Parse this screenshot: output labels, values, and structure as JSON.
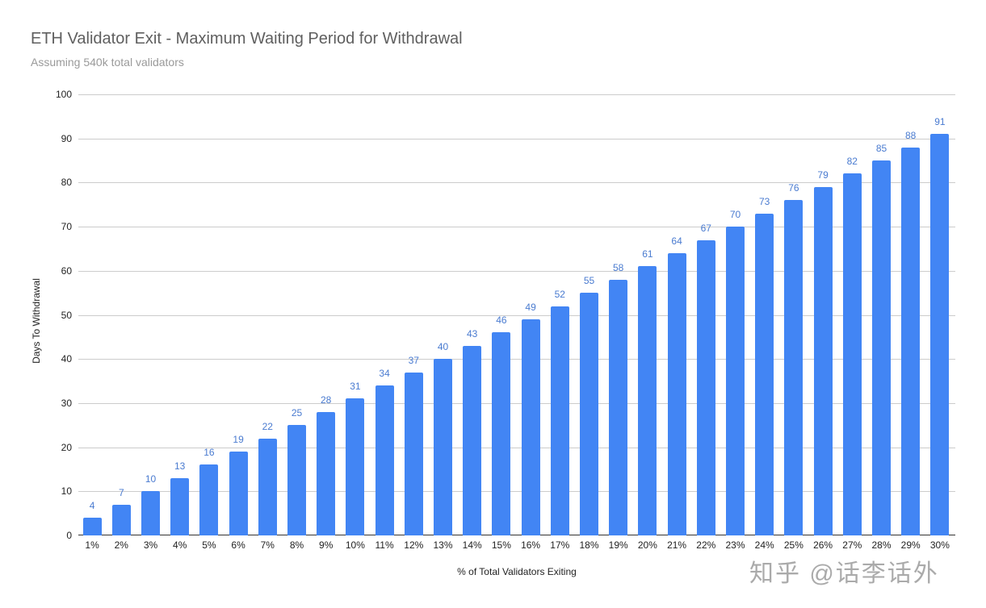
{
  "chart_data": {
    "type": "bar",
    "title": "ETH Validator Exit - Maximum Waiting Period for Withdrawal",
    "subtitle": "Assuming 540k total validators",
    "xlabel": "% of Total Validators Exiting",
    "ylabel": "Days To Withdrawal",
    "ylim": [
      0,
      100
    ],
    "yticks": [
      "0",
      "10",
      "20",
      "30",
      "40",
      "50",
      "60",
      "70",
      "80",
      "90",
      "100"
    ],
    "grid": true,
    "legend": "none",
    "bar_color": "#4285f4",
    "label_color": "#4a7bd0",
    "categories": [
      "1%",
      "2%",
      "3%",
      "4%",
      "5%",
      "6%",
      "7%",
      "8%",
      "9%",
      "10%",
      "11%",
      "12%",
      "13%",
      "14%",
      "15%",
      "16%",
      "17%",
      "18%",
      "19%",
      "20%",
      "21%",
      "22%",
      "23%",
      "24%",
      "25%",
      "26%",
      "27%",
      "28%",
      "29%",
      "30%"
    ],
    "values": [
      4,
      7,
      10,
      13,
      16,
      19,
      22,
      25,
      28,
      31,
      34,
      37,
      40,
      43,
      46,
      49,
      52,
      55,
      58,
      61,
      64,
      67,
      70,
      73,
      76,
      79,
      82,
      85,
      88,
      91
    ]
  },
  "watermark": "知乎 @话李话外"
}
